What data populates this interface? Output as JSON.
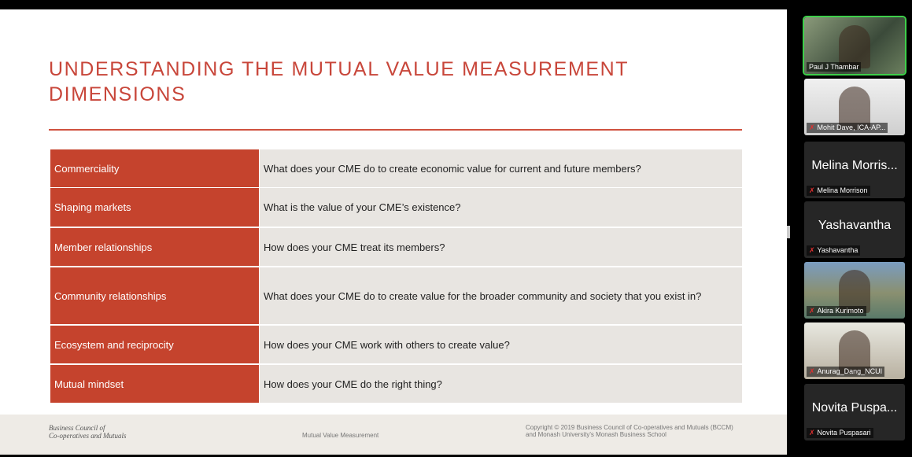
{
  "slide": {
    "title_lines": [
      "UNDERSTANDING THE MUTUAL VALUE MEASUREMENT",
      "DIMENSIONS"
    ],
    "table": {
      "rows": [
        [
          "Commerciality",
          "What does your CME do to create economic value for current and future members?"
        ],
        [
          "Shaping markets",
          "What is the value of your CME’s existence?"
        ],
        [
          "Member relationships",
          "How does your CME treat its members?"
        ],
        [
          "Community relationships",
          "What does your CME do to create value for the broader community and society that you exist in?"
        ],
        [
          "Ecosystem and reciprocity",
          "How does your CME work with others to create value?"
        ],
        [
          "Mutual mindset",
          "How does your CME do the right thing?"
        ]
      ]
    },
    "footer": {
      "logo_lines": [
        "Business Council of",
        "Co-operatives and Mutuals"
      ],
      "center": "Mutual Value Measurement",
      "copyright_lines": [
        "Copyright © 2019 Business Council of Co-operatives and Mutuals (BCCM)",
        "and Monash University's Monash Business School"
      ]
    }
  },
  "participants": [
    {
      "label": "Paul J Thambar"
    },
    {
      "label": "Mohit Dave, ICA-AP..."
    },
    {
      "name": "Melina Morris...",
      "label": "Melina Morrison"
    },
    {
      "name": "Yashavantha",
      "label": "Yashavantha"
    },
    {
      "label": "Akira Kurimoto"
    },
    {
      "label": "Anurag_Dang_NCUI"
    },
    {
      "name": "Novita Puspa...",
      "label": "Novita Puspasari"
    }
  ]
}
